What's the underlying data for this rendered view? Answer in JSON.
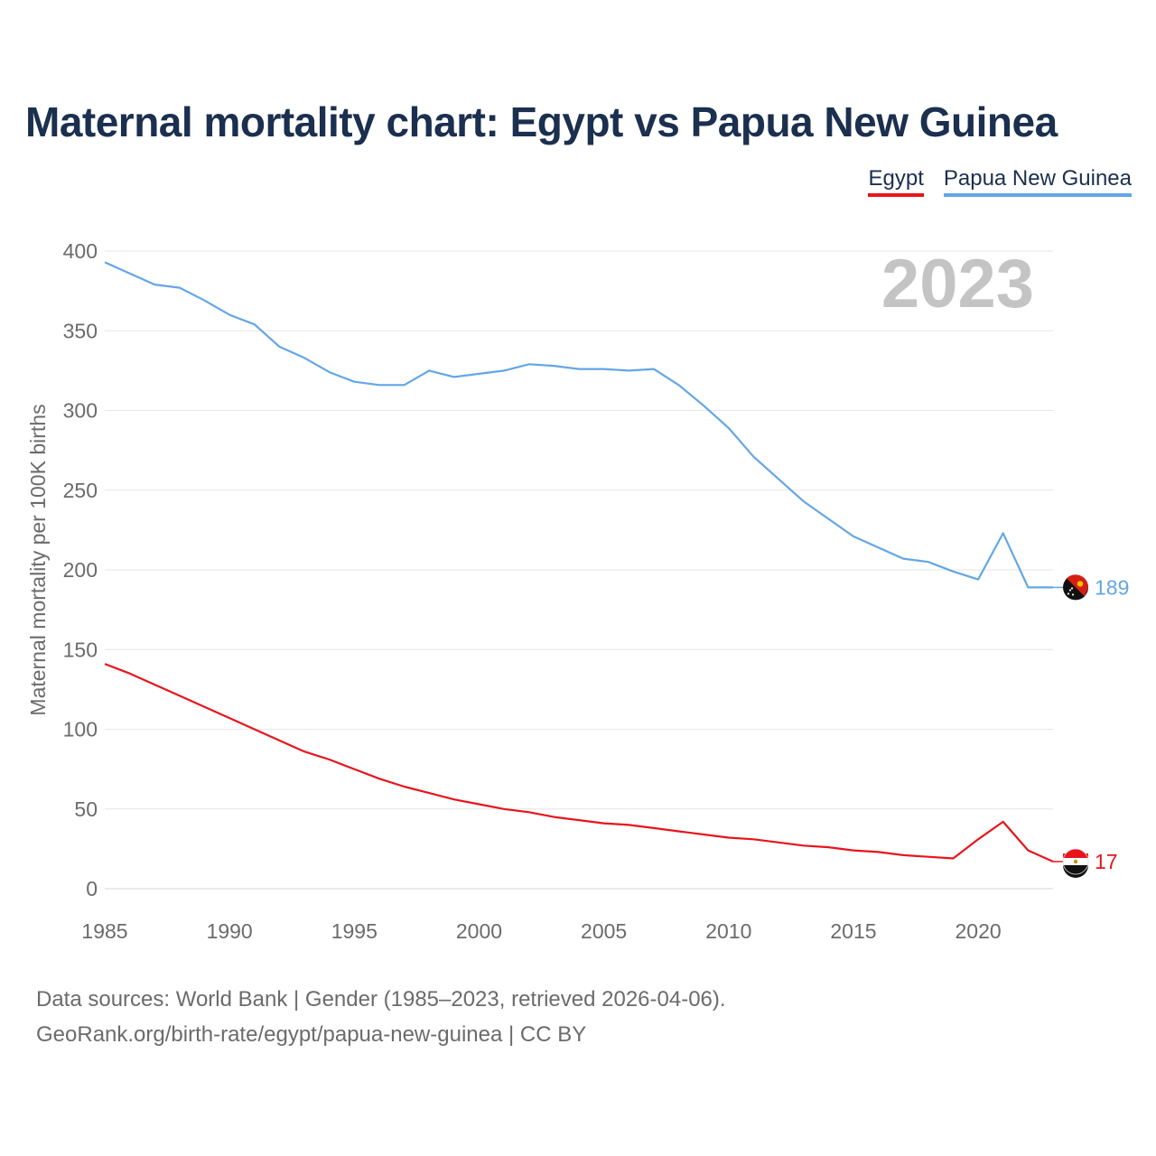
{
  "title": "Maternal mortality chart: Egypt vs Papua New Guinea",
  "legend": {
    "egypt": "Egypt",
    "png": "Papua New Guinea"
  },
  "year_watermark": "2023",
  "footer": {
    "line1": "Data sources: World Bank | Gender (1985–2023, retrieved 2026-04-06).",
    "line2": "GeoRank.org/birth-rate/egypt/papua-new-guinea | CC BY"
  },
  "colors": {
    "egypt": "#e8141c",
    "png": "#63a6e6",
    "title": "#1b2f4f",
    "grid": "#e6e6e6",
    "tick": "#6b6b6b",
    "watermark": "#c4c4c4"
  },
  "chart_data": {
    "type": "line",
    "ylabel": "Maternal mortality per 100K births",
    "xlabel": "",
    "ylim": [
      0,
      400
    ],
    "xlim": [
      1985,
      2023
    ],
    "yticks": [
      0,
      50,
      100,
      150,
      200,
      250,
      300,
      350,
      400
    ],
    "xticks": [
      1985,
      1990,
      1995,
      2000,
      2005,
      2010,
      2015,
      2020
    ],
    "grid": true,
    "x": [
      1985,
      1986,
      1987,
      1988,
      1989,
      1990,
      1991,
      1992,
      1993,
      1994,
      1995,
      1996,
      1997,
      1998,
      1999,
      2000,
      2001,
      2002,
      2003,
      2004,
      2005,
      2006,
      2007,
      2008,
      2009,
      2010,
      2011,
      2012,
      2013,
      2014,
      2015,
      2016,
      2017,
      2018,
      2019,
      2020,
      2021,
      2022,
      2023
    ],
    "series": [
      {
        "name": "Egypt",
        "color": "#e8141c",
        "end_label": "17",
        "values": [
          141,
          135,
          128,
          121,
          114,
          107,
          100,
          93,
          86,
          81,
          75,
          69,
          64,
          60,
          56,
          53,
          50,
          48,
          45,
          43,
          41,
          40,
          38,
          36,
          34,
          32,
          31,
          29,
          27,
          26,
          24,
          23,
          21,
          20,
          19,
          31,
          42,
          24,
          17
        ]
      },
      {
        "name": "Papua New Guinea",
        "color": "#63a6e6",
        "end_label": "189",
        "values": [
          393,
          386,
          379,
          377,
          369,
          360,
          354,
          340,
          333,
          324,
          318,
          316,
          316,
          325,
          321,
          323,
          325,
          329,
          328,
          326,
          326,
          325,
          326,
          316,
          303,
          289,
          271,
          257,
          243,
          232,
          221,
          214,
          207,
          205,
          199,
          194,
          223,
          189,
          189
        ]
      }
    ]
  }
}
